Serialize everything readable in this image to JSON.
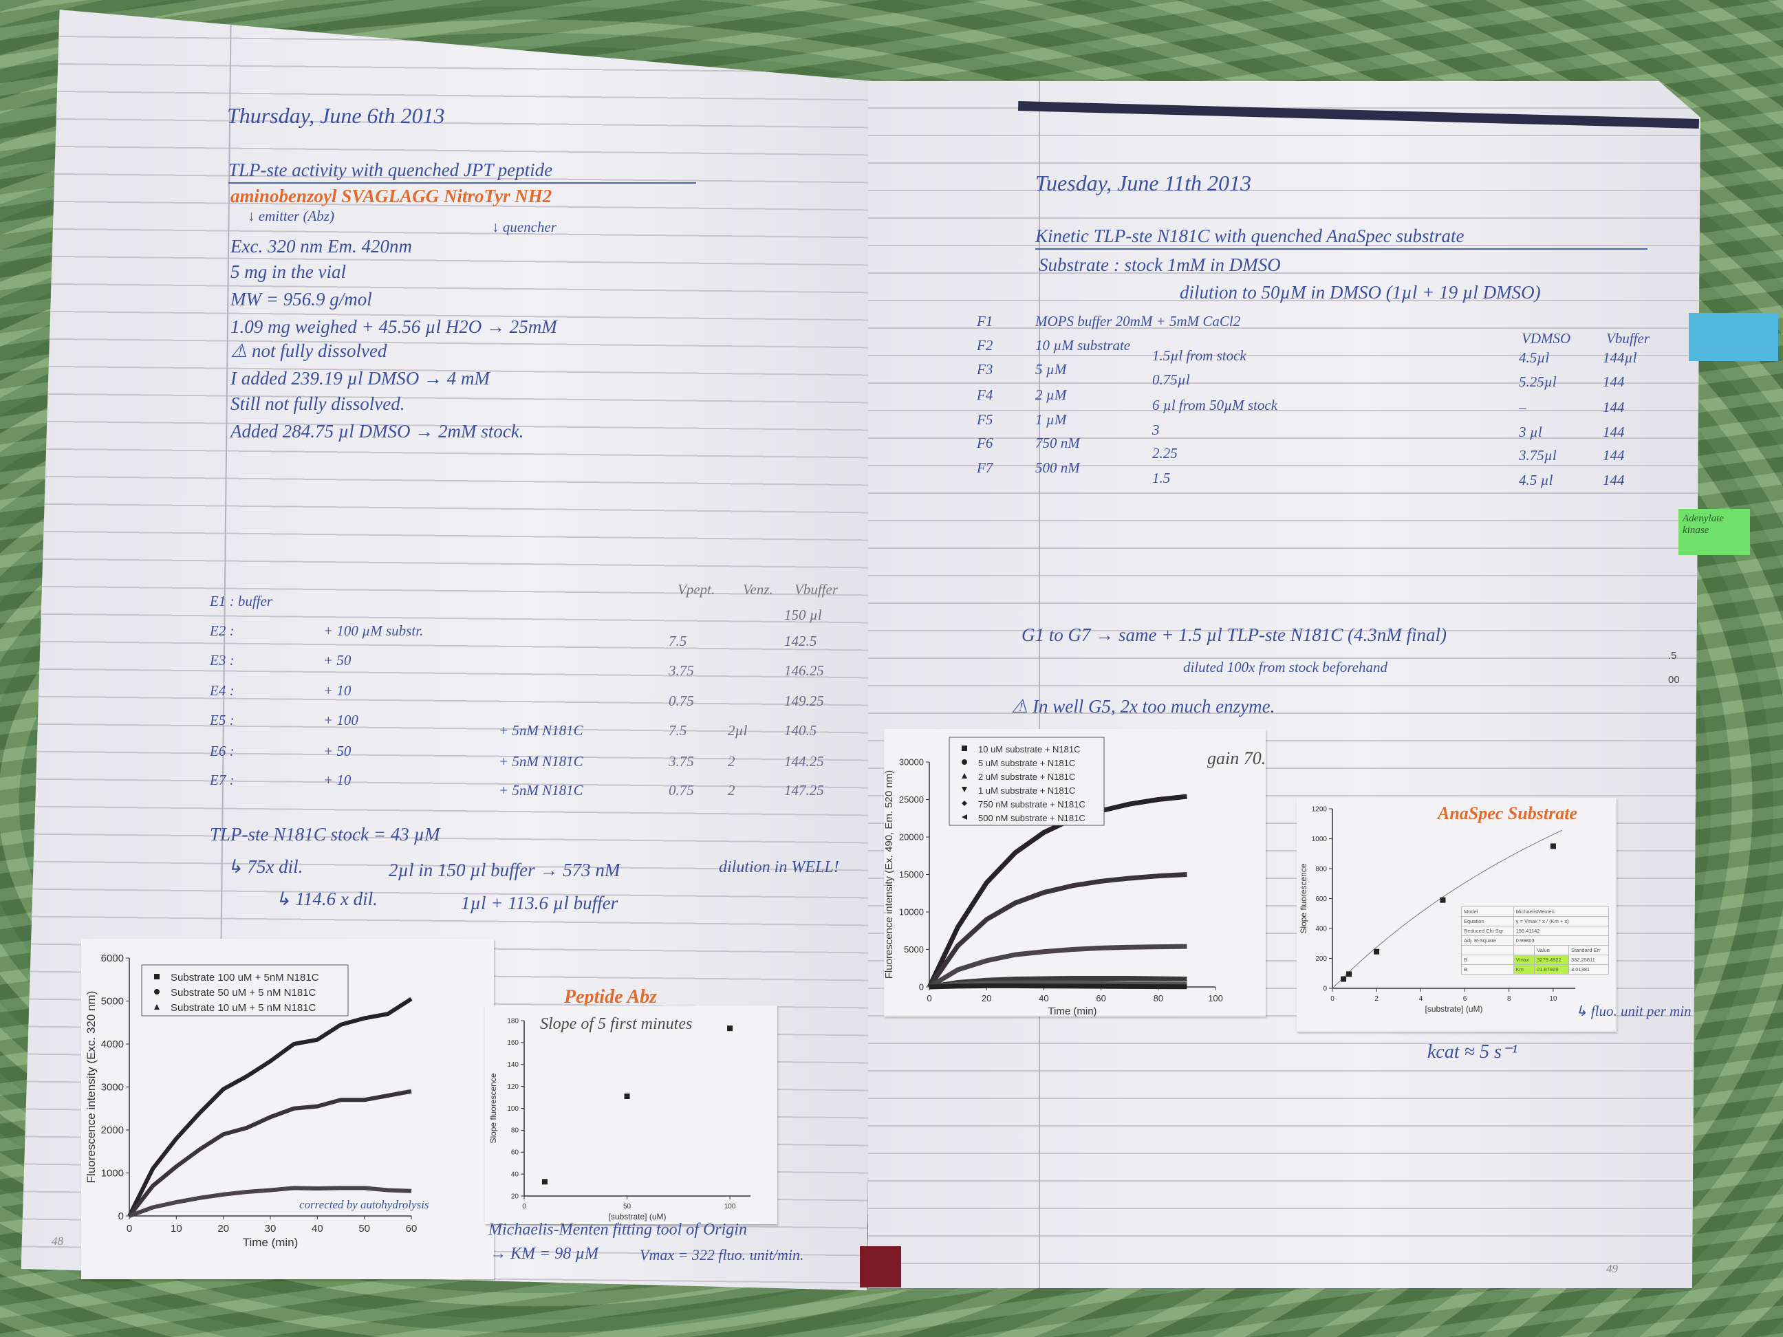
{
  "left_page": {
    "date": "Thursday, June 6th 2013",
    "title": "TLP-ste activity with quenched JPT peptide",
    "sequence": "aminobenzoyl SVAGLAGG NitroTyr NH2",
    "emitter": "↓ emitter (Abz)",
    "quencher": "↓ quencher",
    "notes": [
      "Exc. 320 nm     Em. 420nm",
      "5 mg in the vial",
      "MW = 956.9 g/mol",
      "1.09 mg weighed + 45.56 µl H2O → 25mM",
      "⚠ not fully dissolved",
      "I added 239.19 µl DMSO → 4 mM",
      "Still not fully dissolved.",
      "Added 284.75 µl DMSO → 2mM stock."
    ],
    "table": {
      "headers": [
        "Vpept.",
        "Venz.",
        "Vbuffer"
      ],
      "rows": [
        {
          "label": "E1 : buffer",
          "substrate": "",
          "enzyme": "",
          "v_pept": "",
          "v_enz": "",
          "v_buffer": "150 µl"
        },
        {
          "label": "E2 :",
          "substrate": "+ 100 µM substr.",
          "enzyme": "",
          "v_pept": "7.5",
          "v_enz": "",
          "v_buffer": "142.5"
        },
        {
          "label": "E3 :",
          "substrate": "+ 50",
          "enzyme": "",
          "v_pept": "3.75",
          "v_enz": "",
          "v_buffer": "146.25"
        },
        {
          "label": "E4 :",
          "substrate": "+ 10",
          "enzyme": "",
          "v_pept": "0.75",
          "v_enz": "",
          "v_buffer": "149.25"
        },
        {
          "label": "E5 :",
          "substrate": "+ 100",
          "enzyme": "+ 5nM N181C",
          "v_pept": "7.5",
          "v_enz": "2µl",
          "v_buffer": "140.5"
        },
        {
          "label": "E6 :",
          "substrate": "+ 50",
          "enzyme": "+ 5nM N181C",
          "v_pept": "3.75",
          "v_enz": "2",
          "v_buffer": "144.25"
        },
        {
          "label": "E7 :",
          "substrate": "+ 10",
          "enzyme": "+ 5nM N181C",
          "v_pept": "0.75",
          "v_enz": "2",
          "v_buffer": "147.25"
        }
      ]
    },
    "stock_line": "TLP-ste N181C stock = 43 µM",
    "dilution_1": "↳ 75x dil.",
    "dilution_1_detail": "2µl in 150 µl buffer → 573 nM",
    "dilution_1_note": "dilution in WELL!",
    "dilution_2": "↳ 114.6 x dil.",
    "dilution_2_detail": "1µl + 113.6 µl buffer",
    "chart1_annotation": "corrected by autohydrolysis",
    "chart2_heading": "Peptide Abz",
    "chart2_note": "Slope of 5 first minutes",
    "mm_note": "Michaelis-Menten fitting tool of Origin",
    "km_note": "→ KM = 98 µM",
    "vmax_note": "Vmax = 322 fluo. unit/min.",
    "page_number": "48"
  },
  "right_page": {
    "date": "Tuesday, June 11th 2013",
    "title": "Kinetic TLP-ste N181C with quenched AnaSpec substrate",
    "substrate_line": "Substrate :   stock 1mM in DMSO",
    "dilution_line": "dilution to 50µM in DMSO (1µl + 19 µl DMSO)",
    "table": {
      "headers": [
        "VDMSO",
        "Vbuffer"
      ],
      "rows": [
        {
          "label": "F1",
          "conc": "MOPS buffer 20mM + 5mM CaCl2",
          "volume": "",
          "v_dmso": "",
          "v_buffer": ""
        },
        {
          "label": "F2",
          "conc": "10 µM substrate",
          "volume": "1.5µl from stock",
          "v_dmso": "4.5µl",
          "v_buffer": "144µl"
        },
        {
          "label": "F3",
          "conc": "5 µM",
          "volume": "0.75µl",
          "v_dmso": "5.25µl",
          "v_buffer": "144"
        },
        {
          "label": "F4",
          "conc": "2 µM",
          "volume": "6 µl from 50µM stock",
          "v_dmso": "–",
          "v_buffer": "144"
        },
        {
          "label": "F5",
          "conc": "1 µM",
          "volume": "3",
          "v_dmso": "3 µl",
          "v_buffer": "144"
        },
        {
          "label": "F6",
          "conc": "750 nM",
          "volume": "2.25",
          "v_dmso": "3.75µl",
          "v_buffer": "144"
        },
        {
          "label": "F7",
          "conc": "500 nM",
          "volume": "1.5",
          "v_dmso": "4.5 µl",
          "v_buffer": "144"
        }
      ]
    },
    "g_line": "G1 to G7  →  same + 1.5 µl TLP-ste N181C (4.3nM final)",
    "g_note": "diluted 100x from stock beforehand",
    "warning": "⚠ In well G5, 2x too much enzyme.",
    "gain": "gain 70.",
    "chart4_heading": "AnaSpec Substrate",
    "units_note": "↳ fluo. unit per min",
    "kcat": "kcat ≈ 5 s⁻¹",
    "edge_marks": [
      ".5",
      "00"
    ],
    "page_number": "49",
    "fit_table": {
      "model_label": "Model",
      "model": "MichaelisMenten",
      "equation_label": "Equation",
      "equation": "y = Vmax * x / (Km + x)",
      "chi_label": "Reduced Chi-Sqr",
      "chi": "156.41142",
      "r2_label": "Adj. R-Square",
      "r2": "0.99803",
      "value_header": "Value",
      "error_header": "Standard Err",
      "rows": [
        {
          "group": "B",
          "param": "Vmax",
          "value": "3278.4822",
          "error": "332.25811"
        },
        {
          "group": "B",
          "param": "Km",
          "value": "21.87929",
          "error": "3.01381"
        }
      ]
    }
  },
  "sticky_notes": {
    "green": "Adenylate kinase",
    "blue_color": "#4fb8dc",
    "green_color": "#6fe06a"
  },
  "colors": {
    "ink_blue": "#3b4f9f",
    "ink_orange": "#e26b2c",
    "highlight": "#b8f04a",
    "background_cloth": "#6b9860"
  },
  "chart_data": [
    {
      "type": "line",
      "xlabel": "Time (min)",
      "ylabel": "Fluorescence intensity (Exc. 320 nm)",
      "xlim": [
        0,
        60
      ],
      "ylim": [
        0,
        6000
      ],
      "xticks": [
        0,
        10,
        20,
        30,
        40,
        50,
        60
      ],
      "yticks": [
        0,
        1000,
        2000,
        3000,
        4000,
        5000,
        6000
      ],
      "legend_position": "top-left",
      "grid": false,
      "x": [
        0,
        5,
        10,
        15,
        20,
        25,
        30,
        35,
        40,
        45,
        50,
        55,
        60
      ],
      "series": [
        {
          "name": "Substrate 100 uM + 5nM N181C",
          "marker": "square",
          "values": [
            0,
            1100,
            1800,
            2400,
            2950,
            3250,
            3600,
            4000,
            4100,
            4450,
            4600,
            4700,
            5050
          ]
        },
        {
          "name": "Substrate 50 uM + 5 nM N181C",
          "marker": "circle",
          "values": [
            0,
            700,
            1150,
            1550,
            1900,
            2050,
            2300,
            2500,
            2550,
            2700,
            2700,
            2800,
            2900
          ]
        },
        {
          "name": "Substrate 10 uM + 5 nM N181C",
          "marker": "triangle-up",
          "values": [
            0,
            200,
            320,
            420,
            500,
            560,
            600,
            650,
            640,
            650,
            650,
            600,
            580
          ]
        }
      ]
    },
    {
      "type": "scatter",
      "xlabel": "[substrate] (uM)",
      "ylabel": "Slope fluorescence",
      "xlim": [
        0,
        110
      ],
      "ylim": [
        20,
        180
      ],
      "xticks": [
        0,
        50,
        100
      ],
      "yticks": [
        20,
        40,
        60,
        80,
        100,
        120,
        140,
        160,
        180
      ],
      "grid": false,
      "series": [
        {
          "marker": "square",
          "x": [
            10,
            50,
            100
          ],
          "values": [
            33,
            111,
            173
          ]
        }
      ]
    },
    {
      "type": "line",
      "xlabel": "Time (min)",
      "ylabel": "Fluorescence intensity (Ex. 490, Em. 520 nm)",
      "xlim": [
        0,
        100
      ],
      "ylim": [
        0,
        30000
      ],
      "xticks": [
        0,
        20,
        40,
        60,
        80,
        100
      ],
      "yticks": [
        0,
        5000,
        10000,
        15000,
        20000,
        25000,
        30000
      ],
      "legend_position": "top-left",
      "grid": false,
      "x": [
        0,
        10,
        20,
        30,
        40,
        50,
        60,
        70,
        80,
        90
      ],
      "series": [
        {
          "name": "10 uM substrate + N181C",
          "marker": "square",
          "values": [
            0,
            8000,
            13900,
            17900,
            20600,
            22400,
            23500,
            24400,
            25000,
            25400
          ]
        },
        {
          "name": "5 uM substrate + N181C",
          "marker": "circle",
          "values": [
            0,
            5500,
            9000,
            11200,
            12600,
            13500,
            14100,
            14500,
            14800,
            15000
          ]
        },
        {
          "name": "2 uM substrate + N181C",
          "marker": "triangle-up",
          "values": [
            0,
            2300,
            3500,
            4300,
            4700,
            5000,
            5200,
            5300,
            5350,
            5400
          ]
        },
        {
          "name": "1 uM substrate + N181C",
          "marker": "triangle-down",
          "values": [
            0,
            600,
            900,
            1050,
            1100,
            1150,
            1150,
            1150,
            1100,
            1050
          ]
        },
        {
          "name": "750 nM substrate + N181C",
          "marker": "diamond",
          "values": [
            0,
            350,
            500,
            550,
            550,
            550,
            500,
            450,
            400,
            350
          ]
        },
        {
          "name": "500 nM substrate + N181C",
          "marker": "triangle-left",
          "values": [
            0,
            100,
            150,
            150,
            120,
            100,
            80,
            60,
            40,
            20
          ]
        }
      ]
    },
    {
      "type": "scatter",
      "xlabel": "[substrate] (uM)",
      "ylabel": "Slope fluorescence",
      "xlim": [
        0,
        11
      ],
      "ylim": [
        0,
        1200
      ],
      "xticks": [
        0,
        2,
        4,
        6,
        8,
        10
      ],
      "yticks": [
        0,
        200,
        400,
        600,
        800,
        1000,
        1200
      ],
      "grid": false,
      "series": [
        {
          "marker": "square",
          "x": [
            0.5,
            0.75,
            2,
            5,
            10
          ],
          "values": [
            62,
            95,
            245,
            590,
            950
          ]
        }
      ],
      "fit": {
        "model": "MichaelisMenten",
        "vmax": 3278.4822,
        "km": 21.87929
      }
    }
  ]
}
